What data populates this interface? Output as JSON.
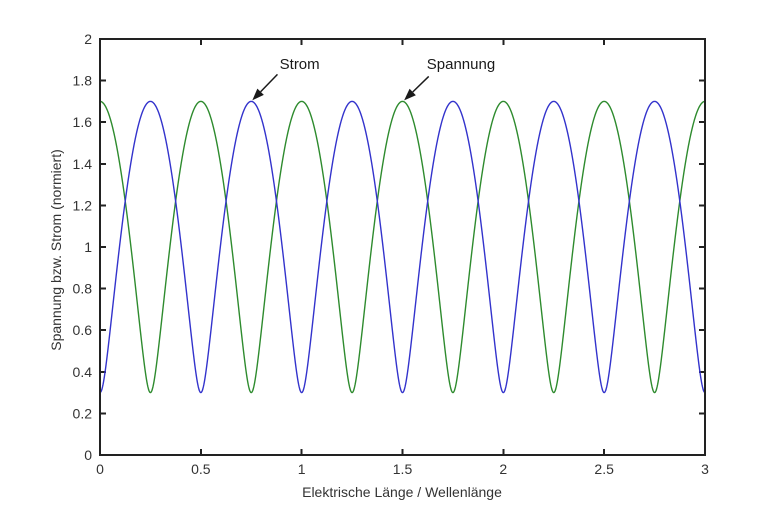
{
  "figure": {
    "background": "#ffffff",
    "axis_color": "#222222",
    "text_color": "#333333",
    "annotation_color": "#1a1a1a"
  },
  "chart_data": {
    "type": "line",
    "title": "",
    "xlabel": "Elektrische Länge / Wellenlänge",
    "ylabel": "Spannung bzw. Strom (normiert)",
    "xlim": [
      0,
      3
    ],
    "ylim": [
      0,
      2
    ],
    "grid": false,
    "box": true,
    "xticks": {
      "values": [
        0,
        0.5,
        1,
        1.5,
        2,
        2.5,
        3
      ],
      "labels": [
        "0",
        "0.5",
        "1",
        "1.5",
        "2",
        "2.5",
        "3"
      ]
    },
    "yticks": {
      "values": [
        0,
        0.2,
        0.4,
        0.6,
        0.8,
        1,
        1.2,
        1.4,
        1.6,
        1.8,
        2
      ],
      "labels": [
        "0",
        "0.2",
        "0.4",
        "0.6",
        "0.8",
        "1",
        "1.2",
        "1.4",
        "1.6",
        "1.8",
        "2"
      ]
    },
    "series": [
      {
        "name": "Spannung",
        "color": "#2e8b2e",
        "shape": "standing-wave",
        "formula": "sqrt(1 + 0.7^2 + 2*0.7*cos(4*pi*x))",
        "max": 1.7,
        "min": 0.3,
        "period": 0.5,
        "cos_sign": 1,
        "maxima_x": [
          0,
          0.5,
          1,
          1.5,
          2,
          2.5,
          3
        ],
        "minima_x": [
          0.25,
          0.75,
          1.25,
          1.75,
          2.25,
          2.75
        ]
      },
      {
        "name": "Strom",
        "color": "#3333cc",
        "shape": "standing-wave",
        "formula": "sqrt(1 + 0.7^2 - 2*0.7*cos(4*pi*x))",
        "max": 1.7,
        "min": 0.3,
        "period": 0.5,
        "cos_sign": -1,
        "maxima_x": [
          0.25,
          0.75,
          1.25,
          1.75,
          2.25,
          2.75
        ],
        "minima_x": [
          0,
          0.5,
          1,
          1.5,
          2,
          2.5,
          3
        ]
      }
    ],
    "crossing_value": 1.22,
    "annotations": [
      {
        "label": "Strom",
        "series": "Strom",
        "text_pos": {
          "x": 0.99,
          "y": 1.88
        },
        "arrow_start": {
          "x": 0.88,
          "y": 1.83
        },
        "arrow_tip": {
          "x": 0.755,
          "y": 1.705
        }
      },
      {
        "label": "Spannung",
        "series": "Spannung",
        "text_pos": {
          "x": 1.79,
          "y": 1.88
        },
        "arrow_start": {
          "x": 1.63,
          "y": 1.82
        },
        "arrow_tip": {
          "x": 1.508,
          "y": 1.705
        }
      }
    ]
  }
}
